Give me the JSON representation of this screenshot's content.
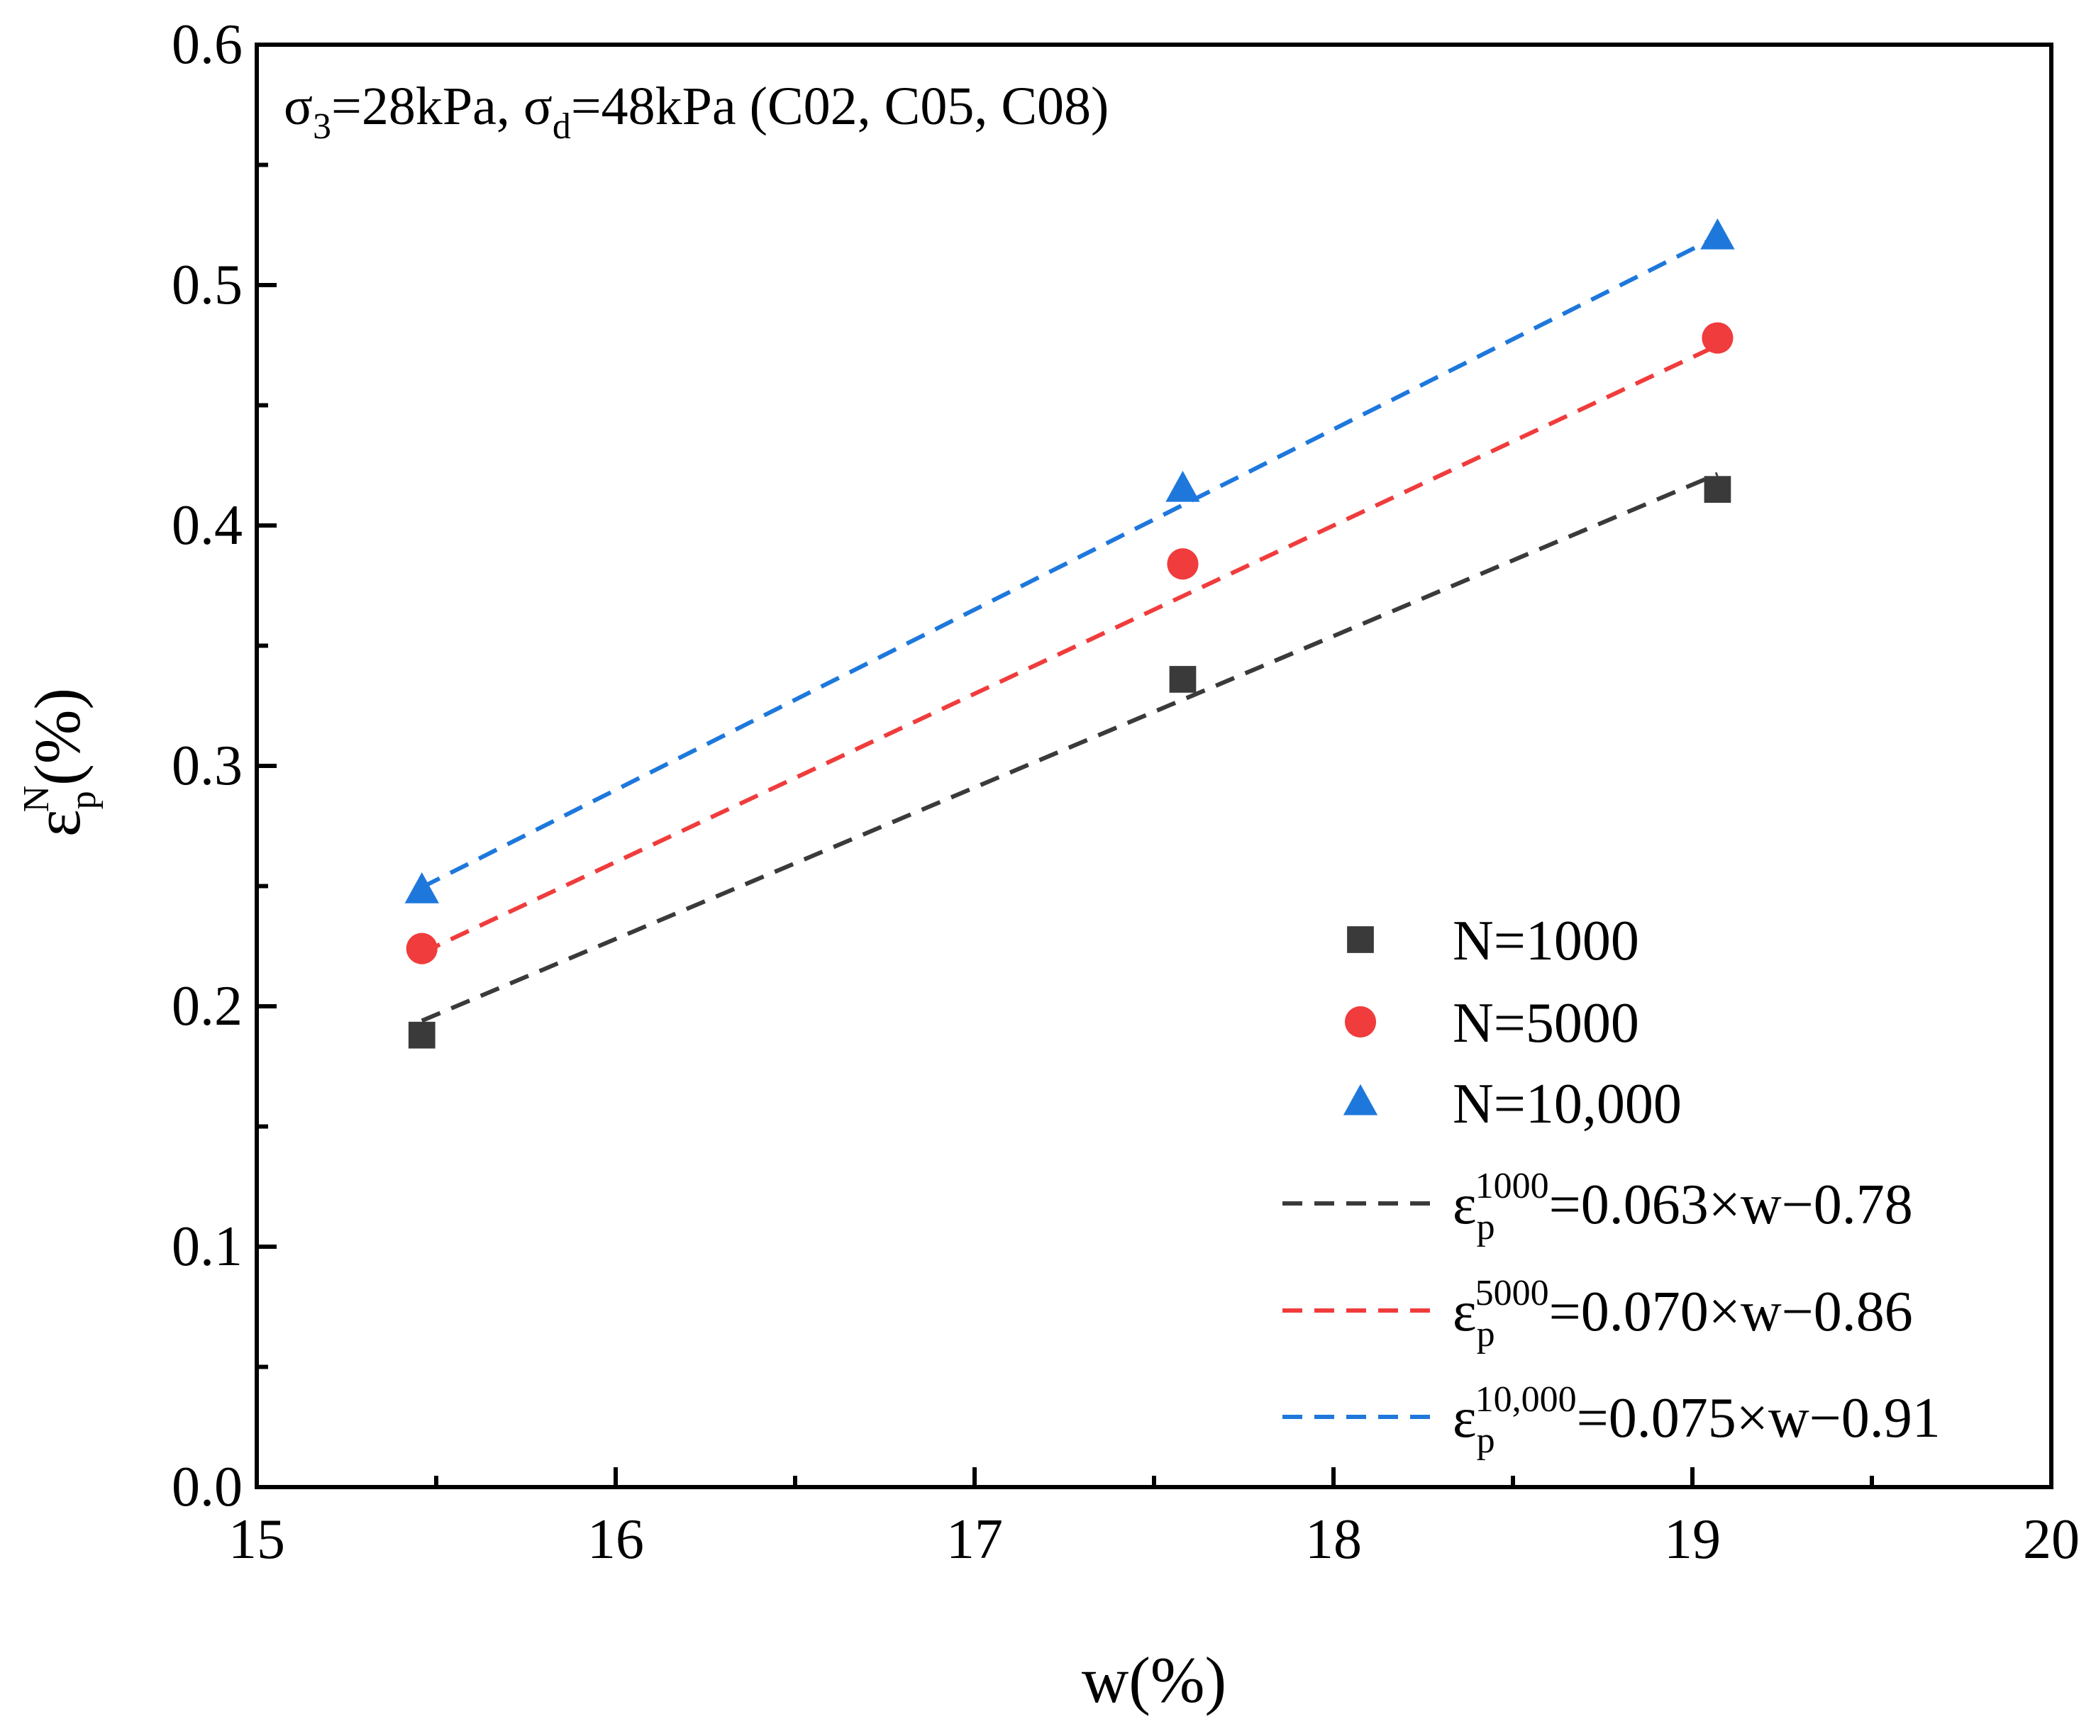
{
  "chart_data": {
    "type": "scatter",
    "annotation": {
      "parts": [
        {
          "text": "σ",
          "style": "normal"
        },
        {
          "text": "3",
          "style": "sub"
        },
        {
          "text": "=28kPa, σ",
          "style": "normal"
        },
        {
          "text": "d",
          "style": "sub"
        },
        {
          "text": "=48kPa (C02, C05, C08)",
          "style": "normal"
        }
      ]
    },
    "xlabel": "w(%)",
    "ylabel": {
      "base": "ε",
      "sub": "p",
      "sup": "N",
      "rest": "(%)"
    },
    "xlim": [
      15,
      20
    ],
    "ylim": [
      0.0,
      0.6
    ],
    "xticks": [
      15,
      16,
      17,
      18,
      19,
      20
    ],
    "xtick_labels": [
      "15",
      "16",
      "17",
      "18",
      "19",
      "20"
    ],
    "yticks": [
      0.0,
      0.1,
      0.2,
      0.3,
      0.4,
      0.5,
      0.6
    ],
    "ytick_labels": [
      "0.0",
      "0.1",
      "0.2",
      "0.3",
      "0.4",
      "0.5",
      "0.6"
    ],
    "x_minor_step": 0.5,
    "y_minor_step": 0.05,
    "grid": false,
    "legend_position": "lower-right",
    "series": [
      {
        "name": "N=1000",
        "marker": "square",
        "color": "#3a3a3a",
        "x": [
          15.46,
          17.58,
          19.07
        ],
        "y": [
          0.188,
          0.336,
          0.415
        ]
      },
      {
        "name": "N=5000",
        "marker": "circle",
        "color": "#f03c3c",
        "x": [
          15.46,
          17.58,
          19.07
        ],
        "y": [
          0.224,
          0.384,
          0.478
        ]
      },
      {
        "name": "N=10,000",
        "marker": "triangle",
        "color": "#1e78dc",
        "x": [
          15.46,
          17.58,
          19.07
        ],
        "y": [
          0.248,
          0.415,
          0.52
        ]
      }
    ],
    "fits": [
      {
        "label": {
          "base": "ε",
          "sub": "p",
          "sup": "1000",
          "rest": "=0.063×w−0.78"
        },
        "color": "#3a3a3a",
        "slope": 0.063,
        "intercept": -0.78,
        "x_range": [
          15.46,
          19.07
        ]
      },
      {
        "label": {
          "base": "ε",
          "sub": "p",
          "sup": "5000",
          "rest": "=0.070×w−0.86"
        },
        "color": "#f03c3c",
        "slope": 0.07,
        "intercept": -0.86,
        "x_range": [
          15.46,
          19.07
        ]
      },
      {
        "label": {
          "base": "ε",
          "sub": "p",
          "sup": "10,000",
          "rest": "=0.075×w−0.91"
        },
        "color": "#1e78dc",
        "slope": 0.075,
        "intercept": -0.91,
        "x_range": [
          15.46,
          19.07
        ]
      }
    ]
  }
}
